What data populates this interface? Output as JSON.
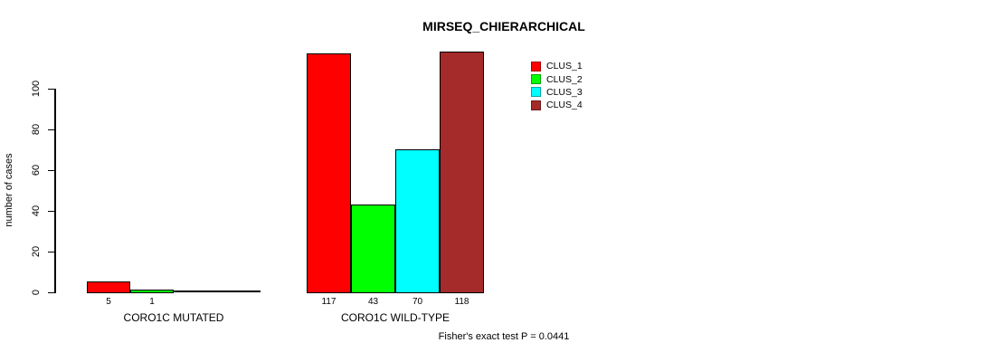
{
  "chart_data": {
    "type": "bar",
    "title": "MIRSEQ_CHIERARCHICAL",
    "ylabel": "number of cases",
    "ylim": [
      0,
      100
    ],
    "yticks": [
      0,
      20,
      40,
      60,
      80,
      100
    ],
    "grid": false,
    "legend_position": "top-right",
    "legend": [
      {
        "label": "CLUS_1",
        "color": "#FF0000"
      },
      {
        "label": "CLUS_2",
        "color": "#00FF00"
      },
      {
        "label": "CLUS_3",
        "color": "#00FFFF"
      },
      {
        "label": "CLUS_4",
        "color": "#A52A2A"
      }
    ],
    "groups": [
      {
        "label": "CORO1C MUTATED",
        "values": [
          5,
          1,
          0,
          0
        ],
        "bar_labels": [
          "5",
          "1",
          "",
          ""
        ]
      },
      {
        "label": "CORO1C WILD-TYPE",
        "values": [
          117,
          43,
          70,
          118
        ],
        "bar_labels": [
          "117",
          "43",
          "70",
          "118"
        ]
      }
    ],
    "footnote": "Fisher's exact test P = 0.0441"
  }
}
